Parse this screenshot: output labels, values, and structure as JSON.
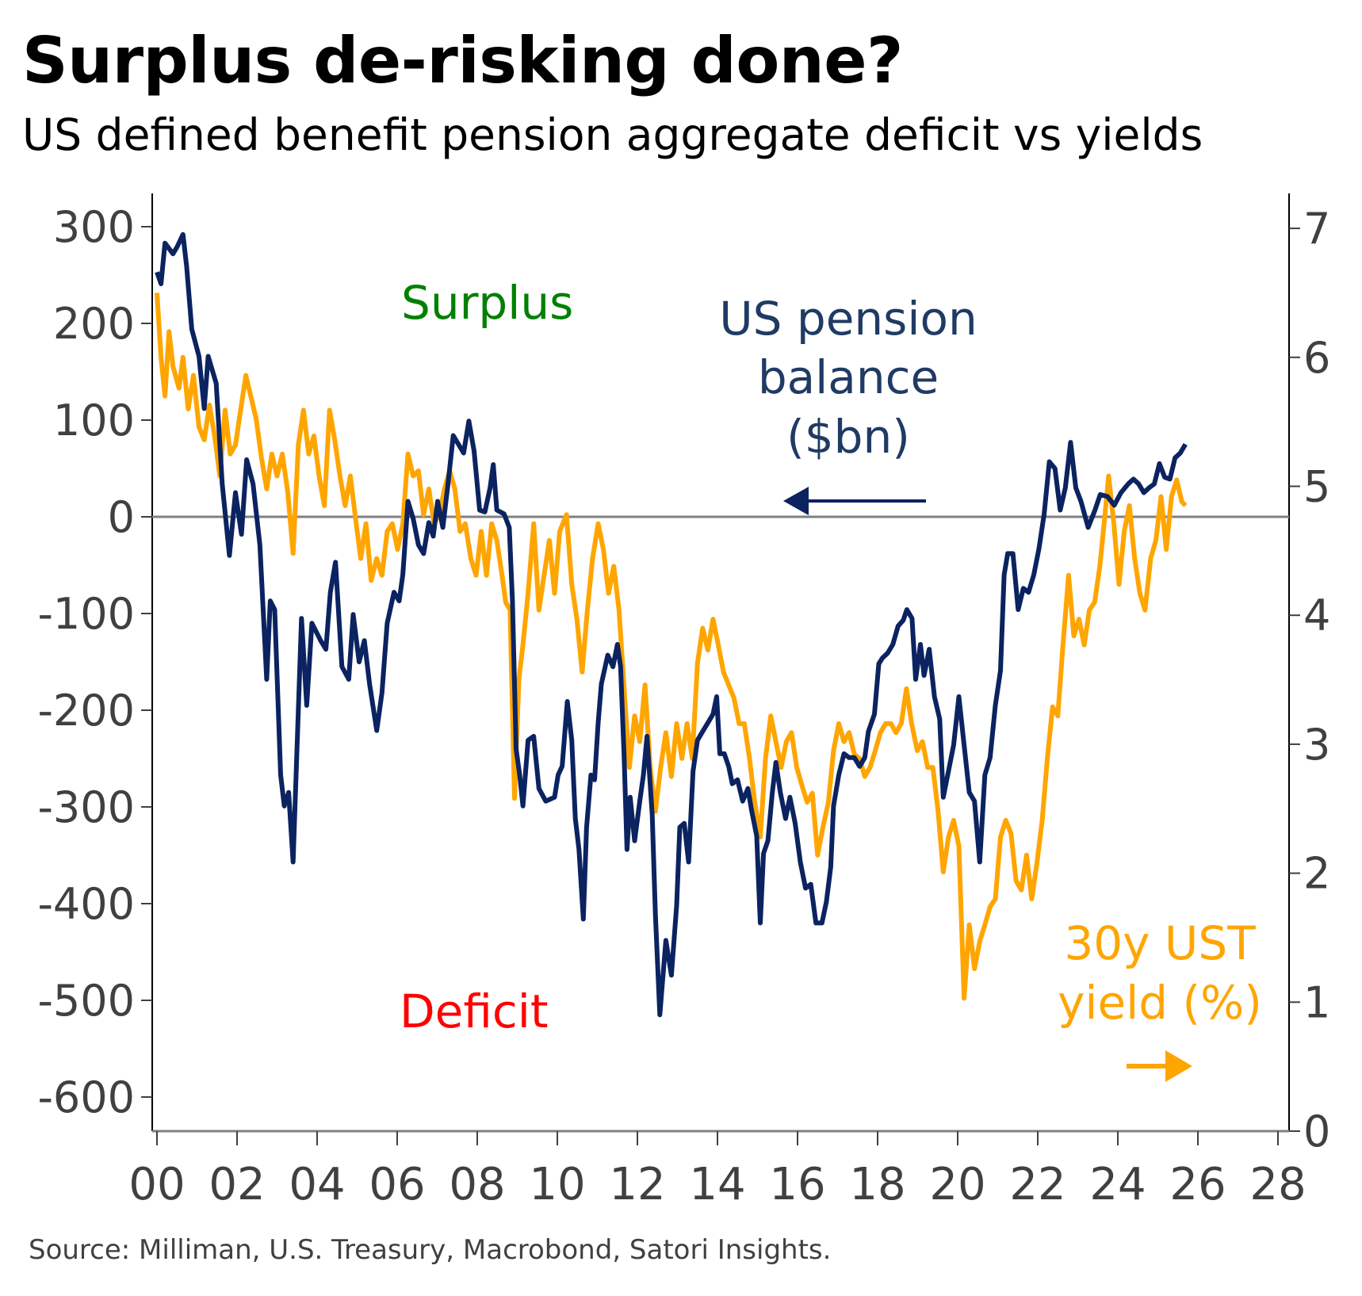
{
  "title": "Surplus de-risking done?",
  "subtitle": "US defined benefit pension aggregate deficit vs yields",
  "source": "Source: Milliman, U.S. Treasury, Macrobond, Satori Insights.",
  "colors": {
    "pension": "#0b2360",
    "yield": "#ffa500",
    "surplus": "#008000",
    "deficit": "#ff0000",
    "pension_label": "#1f3b64",
    "zero_line": "#808080",
    "axis": "#404040"
  },
  "annotations": {
    "surplus": "Surplus",
    "deficit": "Deficit",
    "pension_label": [
      "US pension",
      "balance",
      "($bn)"
    ],
    "yield_label": [
      "30y UST",
      "yield (%)"
    ]
  },
  "chart_data": {
    "type": "line",
    "title": "Surplus de-risking done?",
    "subtitle": "US defined benefit pension aggregate deficit vs yields",
    "xlabel": "",
    "x_ticks": [
      "00",
      "02",
      "04",
      "06",
      "08",
      "10",
      "12",
      "14",
      "16",
      "18",
      "20",
      "22",
      "24",
      "26",
      "28"
    ],
    "xlim": [
      2000,
      2028
    ],
    "y_left": {
      "label": "US pension balance ($bn)",
      "ylim": [
        -600,
        300
      ],
      "ticks": [
        "300",
        "200",
        "100",
        "0",
        "-100",
        "-200",
        "-300",
        "-400",
        "-500",
        "-600"
      ]
    },
    "y_right": {
      "label": "30y UST yield (%)",
      "ylim": [
        0,
        7
      ],
      "ticks": [
        "7",
        "6",
        "5",
        "4",
        "3",
        "2",
        "1",
        "0"
      ]
    },
    "grid": false,
    "series": [
      {
        "name": "US pension balance ($bn)",
        "axis": "left",
        "x": [
          0.0,
          0.1,
          0.2,
          0.4,
          0.5,
          0.65,
          0.74,
          0.87,
          1.05,
          1.18,
          1.28,
          1.48,
          1.63,
          1.81,
          1.96,
          2.11,
          2.24,
          2.4,
          2.57,
          2.74,
          2.83,
          2.94,
          3.09,
          3.18,
          3.29,
          3.4,
          3.61,
          3.74,
          3.87,
          4.09,
          4.22,
          4.33,
          4.46,
          4.62,
          4.79,
          4.9,
          5.05,
          5.18,
          5.31,
          5.49,
          5.62,
          5.75,
          5.92,
          6.05,
          6.14,
          6.27,
          6.4,
          6.53,
          6.66,
          6.79,
          6.9,
          7.01,
          7.14,
          7.27,
          7.4,
          7.53,
          7.66,
          7.79,
          7.92,
          8.06,
          8.19,
          8.32,
          8.4,
          8.49,
          8.67,
          8.8,
          8.88,
          8.97,
          9.06,
          9.14,
          9.27,
          9.41,
          9.54,
          9.71,
          9.93,
          10.02,
          10.12,
          10.25,
          10.36,
          10.45,
          10.54,
          10.65,
          10.73,
          10.84,
          10.93,
          11.02,
          11.1,
          11.26,
          11.39,
          11.5,
          11.58,
          11.67,
          11.74,
          11.82,
          11.93,
          12.06,
          12.15,
          12.24,
          12.37,
          12.45,
          12.56,
          12.71,
          12.85,
          12.98,
          13.06,
          13.17,
          13.28,
          13.39,
          13.5,
          13.63,
          13.76,
          13.89,
          13.98,
          14.06,
          14.17,
          14.28,
          14.37,
          14.5,
          14.63,
          14.76,
          14.85,
          14.98,
          15.07,
          15.15,
          15.26,
          15.37,
          15.46,
          15.57,
          15.7,
          15.81,
          15.94,
          16.07,
          16.2,
          16.33,
          16.46,
          16.61,
          16.72,
          16.83,
          16.9,
          17.03,
          17.16,
          17.29,
          17.42,
          17.55,
          17.68,
          17.77,
          17.92,
          18.03,
          18.12,
          18.25,
          18.38,
          18.51,
          18.64,
          18.73,
          18.86,
          18.95,
          19.07,
          19.16,
          19.29,
          19.42,
          19.55,
          19.64,
          19.77,
          19.9,
          20.03,
          20.16,
          20.29,
          20.42,
          20.55,
          20.68,
          20.81,
          20.94,
          21.07,
          21.16,
          21.25,
          21.38,
          21.51,
          21.64,
          21.77,
          21.9,
          22.03,
          22.16,
          22.29,
          22.43,
          22.56,
          22.69,
          22.82,
          22.95,
          23.08,
          23.26,
          23.43,
          23.56,
          23.74,
          23.91,
          24.08,
          24.26,
          24.39,
          24.52,
          24.65,
          24.78,
          24.91,
          25.04,
          25.17,
          25.3,
          25.43,
          25.56,
          25.69
        ],
        "y": [
          253,
          241,
          283,
          272,
          279,
          292,
          259,
          194,
          166,
          112,
          166,
          138,
          34,
          -40,
          25,
          -18,
          59,
          34,
          -29,
          -168,
          -87,
          -96,
          -267,
          -299,
          -285,
          -357,
          -105,
          -195,
          -110,
          -128,
          -137,
          -78,
          -47,
          -155,
          -168,
          -101,
          -150,
          -128,
          -173,
          -221,
          -182,
          -110,
          -78,
          -87,
          -60,
          16,
          -2,
          -29,
          -38,
          -6,
          -20,
          16,
          -11,
          34,
          84,
          75,
          66,
          99,
          68,
          7,
          5,
          30,
          54,
          7,
          3,
          -11,
          -87,
          -240,
          -267,
          -299,
          -231,
          -227,
          -281,
          -294,
          -290,
          -267,
          -258,
          -191,
          -231,
          -312,
          -344,
          -416,
          -321,
          -267,
          -272,
          -213,
          -173,
          -143,
          -155,
          -132,
          -155,
          -249,
          -344,
          -290,
          -335,
          -294,
          -267,
          -227,
          -308,
          -411,
          -515,
          -438,
          -474,
          -402,
          -321,
          -317,
          -357,
          -263,
          -231,
          -222,
          -213,
          -204,
          -186,
          -245,
          -245,
          -258,
          -276,
          -272,
          -294,
          -281,
          -303,
          -330,
          -420,
          -348,
          -335,
          -285,
          -254,
          -285,
          -312,
          -290,
          -317,
          -357,
          -384,
          -380,
          -420,
          -420,
          -398,
          -362,
          -299,
          -267,
          -245,
          -249,
          -249,
          -258,
          -249,
          -222,
          -204,
          -152,
          -146,
          -141,
          -132,
          -113,
          -107,
          -96,
          -105,
          -168,
          -132,
          -164,
          -137,
          -186,
          -209,
          -290,
          -263,
          -236,
          -186,
          -236,
          -285,
          -294,
          -357,
          -267,
          -249,
          -195,
          -159,
          -60,
          -38,
          -38,
          -96,
          -74,
          -78,
          -60,
          -33,
          3,
          57,
          50,
          7,
          30,
          77,
          30,
          16,
          -11,
          7,
          23,
          21,
          12,
          25,
          34,
          39,
          34,
          25,
          30,
          34,
          55,
          41,
          39,
          61,
          66,
          75
        ]
      },
      {
        "name": "30y UST yield (%)",
        "axis": "right",
        "x": [
          0.0,
          0.1,
          0.2,
          0.3,
          0.4,
          0.55,
          0.65,
          0.78,
          0.91,
          1.05,
          1.18,
          1.31,
          1.44,
          1.57,
          1.7,
          1.83,
          1.96,
          2.09,
          2.22,
          2.35,
          2.48,
          2.61,
          2.74,
          2.87,
          3.0,
          3.13,
          3.27,
          3.4,
          3.53,
          3.66,
          3.79,
          3.92,
          4.05,
          4.18,
          4.31,
          4.44,
          4.57,
          4.7,
          4.83,
          4.96,
          5.09,
          5.22,
          5.35,
          5.49,
          5.62,
          5.75,
          5.88,
          6.01,
          6.14,
          6.27,
          6.4,
          6.53,
          6.66,
          6.79,
          6.92,
          7.05,
          7.18,
          7.31,
          7.44,
          7.57,
          7.7,
          7.84,
          7.97,
          8.1,
          8.23,
          8.36,
          8.49,
          8.62,
          8.71,
          8.82,
          8.93,
          9.04,
          9.14,
          9.27,
          9.41,
          9.54,
          9.67,
          9.8,
          9.93,
          10.06,
          10.23,
          10.36,
          10.49,
          10.62,
          10.75,
          10.88,
          11.02,
          11.15,
          11.28,
          11.41,
          11.54,
          11.67,
          11.8,
          11.93,
          12.06,
          12.19,
          12.32,
          12.45,
          12.58,
          12.71,
          12.85,
          12.98,
          13.11,
          13.24,
          13.37,
          13.5,
          13.63,
          13.76,
          13.89,
          14.02,
          14.15,
          14.28,
          14.41,
          14.54,
          14.67,
          14.8,
          14.93,
          15.07,
          15.2,
          15.33,
          15.46,
          15.59,
          15.72,
          15.85,
          15.98,
          16.11,
          16.24,
          16.37,
          16.5,
          16.63,
          16.77,
          16.9,
          17.03,
          17.16,
          17.29,
          17.42,
          17.55,
          17.68,
          17.81,
          17.94,
          18.07,
          18.2,
          18.33,
          18.46,
          18.59,
          18.72,
          18.85,
          18.99,
          19.12,
          19.25,
          19.38,
          19.51,
          19.64,
          19.77,
          19.9,
          20.03,
          20.16,
          20.29,
          20.42,
          20.55,
          20.68,
          20.81,
          20.94,
          21.07,
          21.2,
          21.33,
          21.46,
          21.59,
          21.72,
          21.85,
          21.98,
          22.11,
          22.24,
          22.37,
          22.5,
          22.63,
          22.77,
          22.9,
          23.03,
          23.16,
          23.29,
          23.42,
          23.55,
          23.68,
          23.77,
          23.9,
          24.03,
          24.16,
          24.29,
          24.42,
          24.55,
          24.68,
          24.82,
          24.95,
          25.08,
          25.21,
          25.34,
          25.47,
          25.6,
          25.69
        ],
        "y": [
          6.5,
          6.0,
          5.7,
          6.2,
          5.93,
          5.76,
          6.0,
          5.6,
          5.86,
          5.46,
          5.36,
          5.63,
          5.39,
          5.08,
          5.59,
          5.25,
          5.32,
          5.59,
          5.86,
          5.69,
          5.52,
          5.22,
          4.98,
          5.25,
          5.08,
          5.25,
          4.95,
          4.48,
          5.32,
          5.59,
          5.25,
          5.39,
          5.08,
          4.85,
          5.59,
          5.36,
          5.08,
          4.85,
          5.08,
          4.75,
          4.44,
          4.71,
          4.27,
          4.44,
          4.31,
          4.65,
          4.71,
          4.51,
          4.71,
          5.25,
          5.08,
          5.12,
          4.78,
          4.98,
          4.71,
          4.78,
          4.98,
          5.12,
          4.98,
          4.65,
          4.71,
          4.44,
          4.31,
          4.65,
          4.31,
          4.71,
          4.58,
          4.31,
          4.1,
          4.04,
          2.58,
          3.5,
          3.77,
          4.17,
          4.71,
          4.04,
          4.31,
          4.58,
          4.17,
          4.65,
          4.78,
          4.24,
          3.97,
          3.56,
          4.04,
          4.44,
          4.71,
          4.51,
          4.17,
          4.38,
          4.04,
          3.43,
          2.82,
          3.22,
          3.02,
          3.46,
          2.82,
          2.48,
          2.82,
          3.09,
          2.75,
          3.16,
          2.89,
          3.16,
          2.89,
          3.63,
          3.9,
          3.73,
          3.97,
          3.77,
          3.56,
          3.46,
          3.36,
          3.16,
          3.16,
          2.89,
          2.55,
          2.28,
          2.89,
          3.22,
          3.02,
          2.82,
          3.02,
          3.09,
          2.82,
          2.68,
          2.55,
          2.62,
          2.14,
          2.35,
          2.55,
          2.95,
          3.16,
          3.02,
          3.09,
          2.92,
          2.89,
          2.75,
          2.82,
          2.95,
          3.09,
          3.16,
          3.16,
          3.09,
          3.16,
          3.43,
          3.16,
          2.95,
          3.02,
          2.82,
          2.82,
          2.48,
          2.01,
          2.28,
          2.41,
          2.21,
          1.03,
          1.6,
          1.26,
          1.47,
          1.6,
          1.74,
          1.8,
          2.28,
          2.41,
          2.31,
          1.94,
          1.87,
          2.14,
          1.8,
          2.08,
          2.41,
          2.89,
          3.29,
          3.22,
          3.77,
          4.31,
          3.84,
          3.97,
          3.77,
          4.04,
          4.1,
          4.38,
          4.78,
          5.08,
          4.71,
          4.24,
          4.65,
          4.85,
          4.44,
          4.17,
          4.04,
          4.44,
          4.58,
          4.92,
          4.51,
          4.92,
          5.05,
          4.88,
          4.85
        ]
      }
    ]
  }
}
